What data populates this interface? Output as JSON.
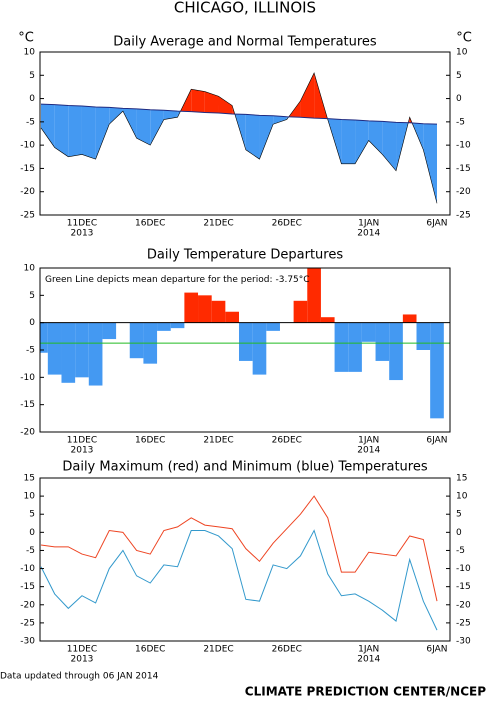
{
  "page_title": "CHICAGO, ILLINOIS",
  "footer_note": "Data updated through 06 JAN 2014",
  "credit": "CLIMATE PREDICTION CENTER/NCEP",
  "chart_data": [
    {
      "type": "area",
      "title": "Daily Average and Normal Temperatures",
      "y_unit": "°C",
      "categories": [
        null,
        null,
        null,
        "11DEC",
        null,
        null,
        null,
        null,
        "16DEC",
        null,
        null,
        null,
        null,
        "21DEC",
        null,
        null,
        null,
        null,
        "26DEC",
        null,
        null,
        null,
        null,
        null,
        "1JAN",
        null,
        null,
        null,
        null,
        "6JAN"
      ],
      "category_years": [
        null,
        null,
        null,
        "2013",
        null,
        null,
        null,
        null,
        null,
        null,
        null,
        null,
        null,
        null,
        null,
        null,
        null,
        null,
        null,
        null,
        null,
        null,
        null,
        null,
        "2014",
        null,
        null,
        null,
        null,
        null
      ],
      "series": [
        {
          "color": "#000000",
          "values": [
            -6.3,
            -10.5,
            -12.5,
            -12,
            -13,
            -5.5,
            -2.7,
            -8.5,
            -10,
            -4.5,
            -4,
            2,
            1.5,
            0.5,
            -1.5,
            -11,
            -13,
            -5.5,
            -4.5,
            -0.5,
            5.5,
            -4.5,
            -14,
            -14,
            -9,
            -12,
            -15.5,
            -4,
            -11,
            -22.5
          ]
        },
        {
          "color": "#1f2a80",
          "values": [
            -1.2,
            -1.3,
            -1.5,
            -1.6,
            -1.8,
            -1.9,
            -2.1,
            -2.2,
            -2.4,
            -2.5,
            -2.7,
            -2.8,
            -3,
            -3.1,
            -3.3,
            -3.4,
            -3.6,
            -3.7,
            -3.9,
            -4,
            -4.2,
            -4.3,
            -4.5,
            -4.6,
            -4.8,
            -4.9,
            -5.1,
            -5.2,
            -5.4,
            -5.5
          ]
        }
      ],
      "above_color": "#ff2a00",
      "below_color": "#4499f2",
      "ylim": [
        -25,
        10
      ],
      "yticks": [
        -25,
        -20,
        -15,
        -10,
        -5,
        0,
        5,
        10
      ],
      "right_axis": true
    },
    {
      "type": "bar",
      "title": "Daily Temperature Departures",
      "categories": [
        null,
        null,
        null,
        "11DEC",
        null,
        null,
        null,
        null,
        "16DEC",
        null,
        null,
        null,
        null,
        "21DEC",
        null,
        null,
        null,
        null,
        "26DEC",
        null,
        null,
        null,
        null,
        null,
        "1JAN",
        null,
        null,
        null,
        null,
        "6JAN"
      ],
      "category_years": [
        null,
        null,
        null,
        "2013",
        null,
        null,
        null,
        null,
        null,
        null,
        null,
        null,
        null,
        null,
        null,
        null,
        null,
        null,
        null,
        null,
        null,
        null,
        null,
        null,
        "2014",
        null,
        null,
        null,
        null,
        null
      ],
      "values": [
        -5.5,
        -9.5,
        -11,
        -10,
        -11.5,
        -3,
        0,
        -6.5,
        -7.5,
        -1.5,
        -1,
        5.5,
        5,
        4,
        2,
        -7,
        -9.5,
        -1.5,
        0,
        4,
        10,
        1,
        -9,
        -9,
        -3.5,
        -7,
        -10.5,
        1.5,
        -5,
        -17.5
      ],
      "above_color": "#ff2a00",
      "below_color": "#4499f2",
      "annotation": "Green Line depicts mean departure for the period:",
      "mean_line": {
        "value": -3.75,
        "label": "-3.75°C",
        "color": "#22bb22"
      },
      "ylim": [
        -20,
        10
      ],
      "yticks": [
        -20,
        -15,
        -10,
        -5,
        0,
        5,
        10
      ],
      "right_axis": false
    },
    {
      "type": "line",
      "title": "Daily Maximum (red) and Minimum (blue) Temperatures",
      "categories": [
        null,
        null,
        null,
        "11DEC",
        null,
        null,
        null,
        null,
        "16DEC",
        null,
        null,
        null,
        null,
        "21DEC",
        null,
        null,
        null,
        null,
        "26DEC",
        null,
        null,
        null,
        null,
        null,
        "1JAN",
        null,
        null,
        null,
        null,
        "6JAN"
      ],
      "category_years": [
        null,
        null,
        null,
        "2013",
        null,
        null,
        null,
        null,
        null,
        null,
        null,
        null,
        null,
        null,
        null,
        null,
        null,
        null,
        null,
        null,
        null,
        null,
        null,
        null,
        "2014",
        null,
        null,
        null,
        null,
        null
      ],
      "series": [
        {
          "color": "#ee4422",
          "values": [
            -3.5,
            -4,
            -4,
            -6,
            -7,
            0.5,
            0,
            -5,
            -6,
            0.5,
            1.5,
            4,
            2,
            1.5,
            1,
            -4.5,
            -8,
            -3,
            1,
            5,
            10,
            4,
            -11,
            -11,
            -5.5,
            -6,
            -6.5,
            -1,
            -2,
            -19
          ]
        },
        {
          "color": "#3399cc",
          "values": [
            -9.5,
            -17,
            -21,
            -17.5,
            -19.5,
            -10,
            -5,
            -12,
            -14,
            -9,
            -9.5,
            0.5,
            0.5,
            -1,
            -4.5,
            -18.5,
            -19,
            -9,
            -10,
            -6.5,
            0.5,
            -11.5,
            -17.5,
            -17,
            -19,
            -21.5,
            -24.5,
            -7.5,
            -19,
            -27
          ]
        }
      ],
      "ylim": [
        -30,
        15
      ],
      "yticks": [
        -30,
        -25,
        -20,
        -15,
        -10,
        -5,
        0,
        5,
        10,
        15
      ],
      "right_axis": true
    }
  ]
}
